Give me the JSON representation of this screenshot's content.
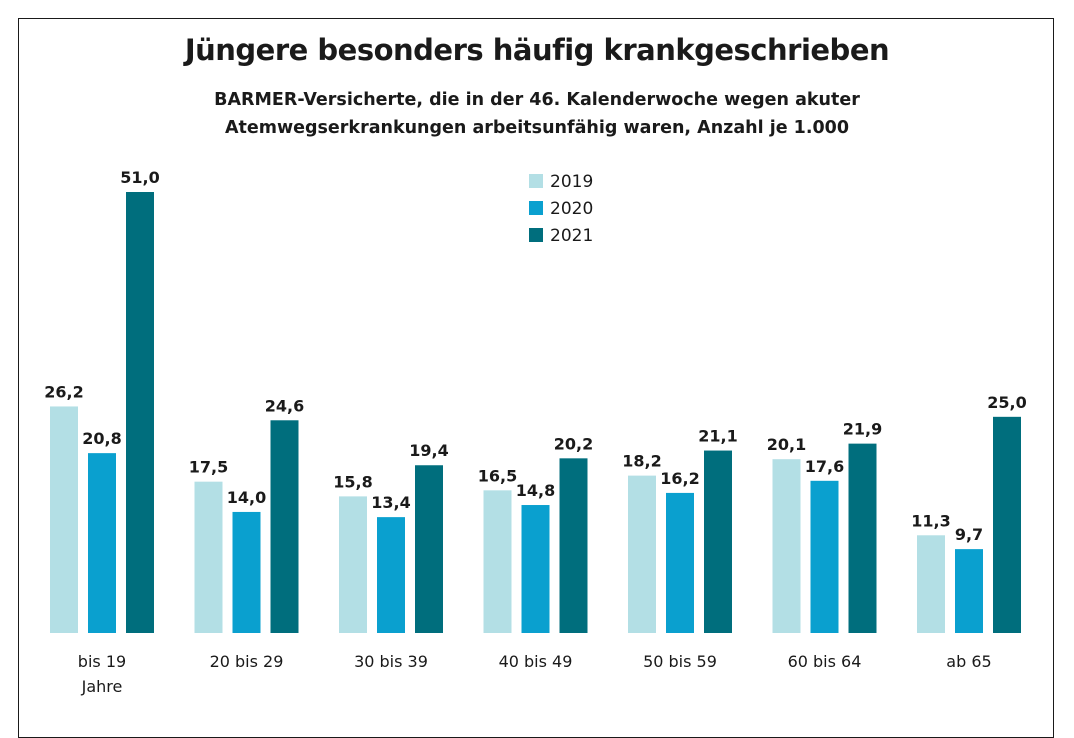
{
  "chart_data": {
    "type": "bar",
    "title": "Jüngere besonders häufig krankgeschrieben",
    "subtitle": "BARMER-Versicherte, die in der 46. Kalenderwoche wegen akuter Atemwegserkrankungen arbeitsunfähig waren, Anzahl je 1.000",
    "categories": [
      [
        "bis 19",
        "Jahre"
      ],
      [
        "20 bis 29"
      ],
      [
        "30 bis 39"
      ],
      [
        "40 bis 49"
      ],
      [
        "50 bis 59"
      ],
      [
        "60 bis 64"
      ],
      [
        "ab 65"
      ]
    ],
    "series": [
      {
        "name": "2019",
        "color": "#b3dfe5",
        "values": [
          26.2,
          17.5,
          15.8,
          16.5,
          18.2,
          20.1,
          11.3
        ],
        "labels": [
          "26,2",
          "17,5",
          "15,8",
          "16,5",
          "18,2",
          "20,1",
          "11,3"
        ]
      },
      {
        "name": "2020",
        "color": "#0aa0cf",
        "values": [
          20.8,
          14.0,
          13.4,
          14.8,
          16.2,
          17.6,
          9.7
        ],
        "labels": [
          "20,8",
          "14,0",
          "13,4",
          "14,8",
          "16,2",
          "17,6",
          "9,7"
        ]
      },
      {
        "name": "2021",
        "color": "#006e7d",
        "values": [
          51.0,
          24.6,
          19.4,
          20.2,
          21.1,
          21.9,
          25.0
        ],
        "labels": [
          "51,0",
          "24,6",
          "19,4",
          "20,2",
          "21,1",
          "21,9",
          "25,0"
        ]
      }
    ],
    "ylim": [
      0,
      51.0
    ],
    "grid": false,
    "legend_position": "top-center"
  }
}
